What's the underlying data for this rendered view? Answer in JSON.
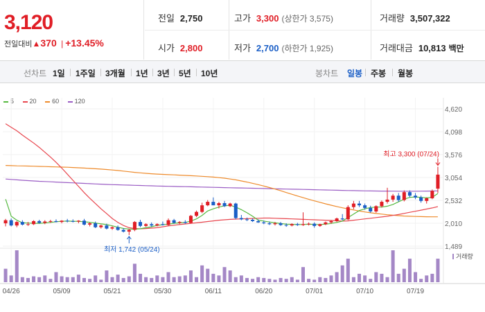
{
  "quote": {
    "price": "3,120",
    "change_label": "전일대비",
    "change_arrow": "▲",
    "change_amount": "370",
    "change_sep": "|",
    "change_pct": "+13.45%"
  },
  "stats": {
    "prev_label": "전일",
    "prev_value": "2,750",
    "open_label": "시가",
    "open_value": "2,800",
    "high_label": "고가",
    "high_value": "3,300",
    "high_limit": "(상한가 3,575)",
    "low_label": "저가",
    "low_value": "2,700",
    "low_limit": "(하한가 1,925)",
    "volume_label": "거래량",
    "volume_value": "3,507,322",
    "amount_label": "거래대금",
    "amount_value": "10,813",
    "amount_unit": "백만"
  },
  "period": {
    "line_label": "선차트",
    "ranges": [
      "1일",
      "1주일",
      "3개월",
      "1년",
      "3년",
      "5년",
      "10년"
    ],
    "candle_label": "봉차트",
    "candles": [
      "일봉",
      "주봉",
      "월봉"
    ],
    "active_candle": "일봉"
  },
  "colors": {
    "up": "#e01d25",
    "down": "#1a5ec6",
    "ma5": "#55b93f",
    "ma20": "#e8464e",
    "ma60": "#ee8a2a",
    "ma120": "#9a5cc4",
    "volume": "#a487c6"
  },
  "chart_data": {
    "type": "candlestick",
    "legend": [
      "5",
      "20",
      "60",
      "120"
    ],
    "ylim": [
      1489,
      4620
    ],
    "yticks": [
      "4,620",
      "4,098",
      "3,576",
      "3,054",
      "2,532",
      "2,010",
      "1,489"
    ],
    "xticks": [
      "04/26",
      "05/09",
      "05/21",
      "05/30",
      "06/11",
      "06/20",
      "07/01",
      "07/10",
      "07/19"
    ],
    "xtick_index": [
      1,
      10,
      19,
      28,
      37,
      46,
      55,
      64,
      73
    ],
    "annotations": {
      "max_label": "최고 3,300 (07/24)",
      "max_index": 77,
      "max_value": 3300,
      "min_label": "최저 1,742 (05/24)",
      "min_index": 22,
      "min_value": 1742
    },
    "volume_label": "거래량",
    "candles": [
      [
        2010,
        2110,
        1940,
        2080
      ],
      [
        2080,
        2120,
        1940,
        1960
      ],
      [
        1960,
        2060,
        1920,
        2040
      ],
      [
        2040,
        2080,
        1960,
        1980
      ],
      [
        1980,
        2040,
        1950,
        1990
      ],
      [
        1990,
        2080,
        1970,
        2060
      ],
      [
        2060,
        2090,
        2000,
        2020
      ],
      [
        2020,
        2080,
        1990,
        2050
      ],
      [
        2050,
        2090,
        2020,
        2060
      ],
      [
        2060,
        2100,
        2030,
        2040
      ],
      [
        2040,
        2080,
        2010,
        2070
      ],
      [
        2070,
        2110,
        2030,
        2060
      ],
      [
        2060,
        2100,
        2030,
        2050
      ],
      [
        2050,
        2080,
        2010,
        2070
      ],
      [
        2070,
        2110,
        1960,
        1980
      ],
      [
        1980,
        2030,
        1940,
        2010
      ],
      [
        2010,
        2050,
        1900,
        1920
      ],
      [
        1920,
        1980,
        1890,
        1960
      ],
      [
        1960,
        2000,
        1870,
        1890
      ],
      [
        1890,
        1940,
        1860,
        1920
      ],
      [
        1920,
        1960,
        1840,
        1860
      ],
      [
        1860,
        1900,
        1800,
        1820
      ],
      [
        1820,
        1880,
        1742,
        1860
      ],
      [
        1860,
        2060,
        1830,
        2040
      ],
      [
        2040,
        2090,
        1920,
        1950
      ],
      [
        1950,
        2010,
        1930,
        1990
      ],
      [
        1990,
        2030,
        1930,
        1960
      ],
      [
        1960,
        2010,
        1940,
        1990
      ],
      [
        1990,
        2050,
        1960,
        1970
      ],
      [
        1970,
        2120,
        1950,
        2080
      ],
      [
        2080,
        2110,
        2000,
        2020
      ],
      [
        2020,
        2060,
        1990,
        2040
      ],
      [
        2040,
        2080,
        2000,
        2020
      ],
      [
        2020,
        2200,
        2000,
        2180
      ],
      [
        2180,
        2300,
        2150,
        2270
      ],
      [
        2270,
        2480,
        2240,
        2420
      ],
      [
        2420,
        2540,
        2400,
        2500
      ],
      [
        2500,
        2600,
        2450,
        2420
      ],
      [
        2420,
        2500,
        2350,
        2470
      ],
      [
        2470,
        2520,
        2380,
        2400
      ],
      [
        2400,
        2480,
        2380,
        2460
      ],
      [
        2460,
        2480,
        2100,
        2130
      ],
      [
        2130,
        2200,
        2080,
        2100
      ],
      [
        2100,
        2140,
        2060,
        2090
      ],
      [
        2090,
        2120,
        2040,
        2060
      ],
      [
        2060,
        2100,
        2020,
        2030
      ],
      [
        2030,
        2070,
        1990,
        2010
      ],
      [
        2010,
        2050,
        1970,
        1990
      ],
      [
        1990,
        2040,
        1960,
        2010
      ],
      [
        2010,
        2040,
        1950,
        1970
      ],
      [
        1970,
        2010,
        1930,
        1960
      ],
      [
        1960,
        2010,
        1940,
        1990
      ],
      [
        1990,
        2020,
        1950,
        1970
      ],
      [
        1970,
        2260,
        1950,
        1990
      ],
      [
        1990,
        2030,
        1960,
        2000
      ],
      [
        2000,
        2030,
        1910,
        1950
      ],
      [
        1950,
        2000,
        1930,
        1990
      ],
      [
        1990,
        2050,
        1970,
        2030
      ],
      [
        2030,
        2080,
        2000,
        2060
      ],
      [
        2060,
        2140,
        2040,
        2120
      ],
      [
        2120,
        2220,
        2080,
        2100
      ],
      [
        2100,
        2420,
        2080,
        2380
      ],
      [
        2380,
        2520,
        2330,
        2460
      ],
      [
        2460,
        2520,
        2380,
        2420
      ],
      [
        2420,
        2460,
        2320,
        2360
      ],
      [
        2360,
        2410,
        2250,
        2280
      ],
      [
        2280,
        2420,
        2250,
        2400
      ],
      [
        2400,
        2530,
        2370,
        2500
      ],
      [
        2500,
        2820,
        2460,
        2550
      ],
      [
        2550,
        2680,
        2500,
        2640
      ],
      [
        2640,
        2700,
        2500,
        2540
      ],
      [
        2540,
        2760,
        2510,
        2720
      ],
      [
        2720,
        2760,
        2600,
        2640
      ],
      [
        2640,
        2700,
        2560,
        2600
      ],
      [
        2600,
        2640,
        2480,
        2520
      ],
      [
        2520,
        2600,
        2460,
        2580
      ],
      [
        2580,
        2780,
        2560,
        2750
      ],
      [
        2800,
        3300,
        2700,
        3120
      ]
    ],
    "volumes": [
      16,
      8,
      38,
      6,
      5,
      7,
      6,
      8,
      4,
      12,
      7,
      6,
      6,
      9,
      5,
      4,
      8,
      3,
      14,
      6,
      9,
      5,
      7,
      22,
      10,
      6,
      5,
      8,
      6,
      12,
      6,
      7,
      8,
      14,
      6,
      20,
      16,
      10,
      8,
      18,
      14,
      6,
      8,
      5,
      4,
      6,
      5,
      4,
      3,
      5,
      4,
      6,
      3,
      18,
      4,
      3,
      6,
      5,
      8,
      12,
      20,
      28,
      6,
      10,
      8,
      4,
      12,
      10,
      6,
      38,
      10,
      16,
      28,
      12,
      4,
      8,
      10,
      28
    ],
    "ma5": [
      2560,
      2170,
      2080,
      2020,
      2015,
      2010,
      2010,
      2015,
      2030,
      2045,
      2055,
      2060,
      2057,
      2054,
      2046,
      2032,
      2016,
      1996,
      1980,
      1952,
      1920,
      1892,
      1880,
      1874,
      1886,
      1910,
      1930,
      1962,
      1978,
      1990,
      2010,
      2020,
      2030,
      2060,
      2110,
      2190,
      2290,
      2340,
      2380,
      2410,
      2420,
      2380,
      2320,
      2250,
      2170,
      2080,
      2060,
      2040,
      2020,
      2005,
      1990,
      1985,
      1980,
      1982,
      1988,
      1984,
      1982,
      1990,
      2006,
      2030,
      2060,
      2140,
      2220,
      2300,
      2340,
      2370,
      2380,
      2380,
      2400,
      2440,
      2500,
      2560,
      2600,
      2610,
      2600,
      2590,
      2600,
      2690
    ],
    "ma20": [
      4280,
      4200,
      4120,
      4020,
      3930,
      3840,
      3740,
      3630,
      3520,
      3400,
      3270,
      3130,
      2990,
      2850,
      2710,
      2580,
      2460,
      2340,
      2230,
      2120,
      2030,
      1960,
      1910,
      1890,
      1885,
      1890,
      1900,
      1910,
      1930,
      1950,
      1965,
      1980,
      1995,
      2010,
      2020,
      2035,
      2050,
      2065,
      2080,
      2090,
      2100,
      2105,
      2110,
      2115,
      2120,
      2125,
      2130,
      2130,
      2125,
      2120,
      2115,
      2110,
      2105,
      2100,
      2095,
      2090,
      2085,
      2080,
      2075,
      2070,
      2060,
      2065,
      2080,
      2095,
      2110,
      2125,
      2140,
      2155,
      2170,
      2190,
      2210,
      2235,
      2260,
      2285,
      2310,
      2335,
      2360,
      2390
    ],
    "ma60": [
      3330,
      3325,
      3320,
      3318,
      3315,
      3312,
      3308,
      3305,
      3300,
      3296,
      3292,
      3288,
      3282,
      3276,
      3270,
      3262,
      3254,
      3246,
      3236,
      3226,
      3214,
      3200,
      3186,
      3172,
      3160,
      3150,
      3140,
      3132,
      3126,
      3120,
      3114,
      3108,
      3102,
      3096,
      3090,
      3082,
      3074,
      3064,
      3052,
      3038,
      3020,
      3000,
      2976,
      2950,
      2922,
      2892,
      2860,
      2826,
      2790,
      2752,
      2712,
      2672,
      2632,
      2594,
      2558,
      2522,
      2488,
      2454,
      2422,
      2392,
      2364,
      2338,
      2314,
      2290,
      2268,
      2250,
      2234,
      2220,
      2206,
      2194,
      2184,
      2176,
      2170,
      2166,
      2162,
      2160,
      2158,
      2158
    ],
    "ma120": [
      3020,
      3010,
      3000,
      2992,
      2984,
      2976,
      2968,
      2962,
      2956,
      2950,
      2944,
      2938,
      2932,
      2926,
      2920,
      2914,
      2908,
      2902,
      2896,
      2892,
      2888,
      2884,
      2880,
      2876,
      2872,
      2868,
      2864,
      2860,
      2857,
      2854,
      2851,
      2848,
      2845,
      2842,
      2839,
      2836,
      2833,
      2830,
      2827,
      2824,
      2821,
      2818,
      2815,
      2812,
      2809,
      2806,
      2803,
      2800,
      2797,
      2794,
      2791,
      2788,
      2785,
      2782,
      2779,
      2776,
      2773,
      2770,
      2767,
      2764,
      2761,
      2758,
      2755,
      2752,
      2750,
      2748,
      2746,
      2745,
      2744,
      2743,
      2742,
      2742,
      2742,
      2742,
      2743,
      2744,
      2746,
      2750
    ]
  }
}
